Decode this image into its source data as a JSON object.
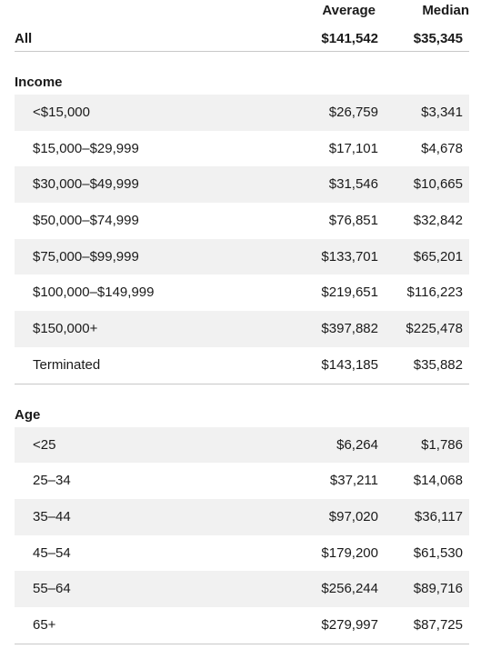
{
  "header": {
    "average": "Average",
    "median": "Median"
  },
  "all": {
    "label": "All",
    "average": "$141,542",
    "median": "$35,345"
  },
  "income": {
    "title": "Income",
    "rows": [
      {
        "label": "<$15,000",
        "average": "$26,759",
        "median": "$3,341"
      },
      {
        "label": "$15,000–$29,999",
        "average": "$17,101",
        "median": "$4,678"
      },
      {
        "label": "$30,000–$49,999",
        "average": "$31,546",
        "median": "$10,665"
      },
      {
        "label": "$50,000–$74,999",
        "average": "$76,851",
        "median": "$32,842"
      },
      {
        "label": "$75,000–$99,999",
        "average": "$133,701",
        "median": "$65,201"
      },
      {
        "label": "$100,000–$149,999",
        "average": "$219,651",
        "median": "$116,223"
      },
      {
        "label": "$150,000+",
        "average": "$397,882",
        "median": "$225,478"
      },
      {
        "label": "Terminated",
        "average": "$143,185",
        "median": "$35,882"
      }
    ]
  },
  "age": {
    "title": "Age",
    "rows": [
      {
        "label": "<25",
        "average": "$6,264",
        "median": "$1,786"
      },
      {
        "label": "25–34",
        "average": "$37,211",
        "median": "$14,068"
      },
      {
        "label": "35–44",
        "average": "$97,020",
        "median": "$36,117"
      },
      {
        "label": "45–54",
        "average": "$179,200",
        "median": "$61,530"
      },
      {
        "label": "55–64",
        "average": "$256,244",
        "median": "$89,716"
      },
      {
        "label": "65+",
        "average": "$279,997",
        "median": "$87,725"
      }
    ]
  }
}
